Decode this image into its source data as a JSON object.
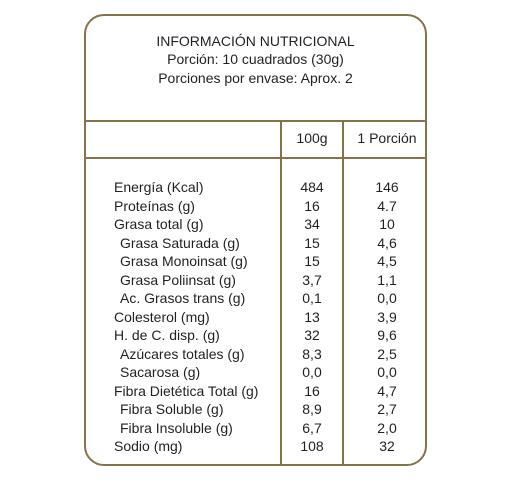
{
  "header": {
    "title": "INFORMACIÓN NUTRICIONAL",
    "portion": "Porción: 10 cuadrados (30g)",
    "servings": "Porciones por envase: Aprox. 2"
  },
  "columns": {
    "per100": "100g",
    "perPortion": "1 Porción"
  },
  "rows": [
    {
      "label": "Energía (Kcal)",
      "v100": "484",
      "vPortion": "146"
    },
    {
      "label": "Proteínas (g)",
      "v100": "16",
      "vPortion": "4.7"
    },
    {
      "label": "Grasa total (g)",
      "v100": "34",
      "vPortion": "10"
    },
    {
      "label": "Grasa Saturada (g)",
      "v100": "15",
      "vPortion": "4,6"
    },
    {
      "label": "Grasa Monoinsat (g)",
      "v100": "15",
      "vPortion": "4,5"
    },
    {
      "label": "Grasa Poliinsat (g)",
      "v100": "3,7",
      "vPortion": "1,1"
    },
    {
      "label": "Ac. Grasos trans (g)",
      "v100": "0,1",
      "vPortion": "0,0"
    },
    {
      "label": "Colesterol (mg)",
      "v100": "13",
      "vPortion": "3,9"
    },
    {
      "label": "H. de C. disp. (g)",
      "v100": "32",
      "vPortion": "9,6"
    },
    {
      "label": "Azúcares totales (g)",
      "v100": "8,3",
      "vPortion": "2,5"
    },
    {
      "label": "Sacarosa (g)",
      "v100": "0,0",
      "vPortion": "0,0"
    },
    {
      "label": "Fibra Dietética Total (g)",
      "v100": "16",
      "vPortion": "4,7"
    },
    {
      "label": "Fibra Soluble (g)",
      "v100": "8,9",
      "vPortion": "2,7"
    },
    {
      "label": "Fibra Insoluble (g)",
      "v100": "6,7",
      "vPortion": "2,0"
    },
    {
      "label": "Sodio (mg)",
      "v100": "108",
      "vPortion": "32"
    }
  ],
  "colors": {
    "border": "#85734a",
    "text": "#231f20"
  }
}
